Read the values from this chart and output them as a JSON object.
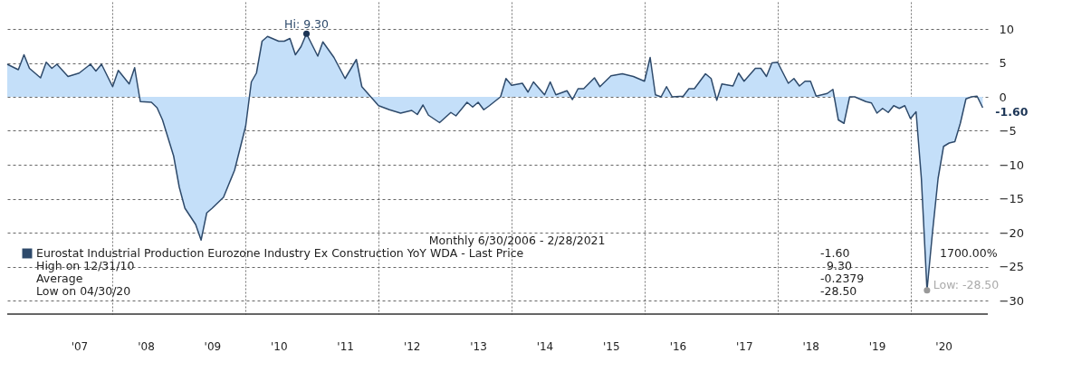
{
  "chart_data": {
    "type": "area",
    "x": [
      "2006-06",
      "2006-08",
      "2006-09",
      "2006-10",
      "2006-12",
      "2007-01",
      "2007-02",
      "2007-03",
      "2007-05",
      "2007-07",
      "2007-09",
      "2007-10",
      "2007-11",
      "2008-01",
      "2008-02",
      "2008-04",
      "2008-05",
      "2008-06",
      "2008-08",
      "2008-09",
      "2008-10",
      "2008-12",
      "2009-01",
      "2009-02",
      "2009-04",
      "2009-05",
      "2009-06",
      "2009-07",
      "2009-09",
      "2009-11",
      "2010-01",
      "2010-02",
      "2010-03",
      "2010-04",
      "2010-05",
      "2010-07",
      "2010-08",
      "2010-09",
      "2010-10",
      "2010-11",
      "2010-12",
      "2011-02",
      "2011-03",
      "2011-05",
      "2011-07",
      "2011-09",
      "2011-10",
      "2012-01",
      "2012-03",
      "2012-05",
      "2012-07",
      "2012-08",
      "2012-09",
      "2012-10",
      "2012-12",
      "2013-02",
      "2013-03",
      "2013-05",
      "2013-06",
      "2013-07",
      "2013-08",
      "2013-09",
      "2013-11",
      "2013-12",
      "2014-01",
      "2014-03",
      "2014-04",
      "2014-05",
      "2014-07",
      "2014-08",
      "2014-09",
      "2014-11",
      "2014-12",
      "2015-01",
      "2015-02",
      "2015-04",
      "2015-05",
      "2015-07",
      "2015-09",
      "2015-11",
      "2016-01",
      "2016-02",
      "2016-03",
      "2016-04",
      "2016-05",
      "2016-06",
      "2016-08",
      "2016-09",
      "2016-10",
      "2016-12",
      "2017-01",
      "2017-02",
      "2017-03",
      "2017-05",
      "2017-06",
      "2017-07",
      "2017-09",
      "2017-10",
      "2017-11",
      "2017-12",
      "2018-01",
      "2018-03",
      "2018-04",
      "2018-05",
      "2018-06",
      "2018-07",
      "2018-08",
      "2018-10",
      "2018-11",
      "2018-12",
      "2019-01",
      "2019-02",
      "2019-03",
      "2019-05",
      "2019-06",
      "2019-07",
      "2019-08",
      "2019-09",
      "2019-10",
      "2019-11",
      "2019-12",
      "2020-01",
      "2020-02",
      "2020-03",
      "2020-04",
      "2020-05",
      "2020-06",
      "2020-07",
      "2020-08",
      "2020-09",
      "2020-10",
      "2020-11",
      "2020-12",
      "2021-01",
      "2021-02"
    ],
    "series": [
      {
        "name": "Eurostat Industrial Production Eurozone Industry Ex Construction YoY WDA - Last Price",
        "color": "#2e4a6b",
        "values": [
          4.8,
          4.0,
          6.2,
          4.2,
          2.8,
          5.1,
          4.2,
          4.8,
          3.0,
          3.5,
          4.8,
          3.8,
          4.8,
          1.5,
          3.9,
          1.9,
          4.3,
          -0.7,
          -0.8,
          -1.6,
          -3.4,
          -8.7,
          -13.3,
          -16.4,
          -18.8,
          -21.1,
          -17.1,
          -16.4,
          -14.8,
          -10.8,
          -4.3,
          2.2,
          3.5,
          8.2,
          8.9,
          8.2,
          8.2,
          8.6,
          6.2,
          7.4,
          9.3,
          6.0,
          8.1,
          5.8,
          2.7,
          5.5,
          1.5,
          -1.3,
          -1.9,
          -2.4,
          -2.0,
          -2.6,
          -1.2,
          -2.7,
          -3.8,
          -2.3,
          -2.8,
          -0.8,
          -1.5,
          -0.8,
          -1.9,
          -1.3,
          0.0,
          2.7,
          1.7,
          2.0,
          0.7,
          2.2,
          0.3,
          2.2,
          0.3,
          0.9,
          -0.4,
          1.2,
          1.2,
          2.8,
          1.5,
          3.1,
          3.4,
          3.0,
          2.3,
          5.8,
          0.3,
          0.0,
          1.5,
          0.0,
          0.1,
          1.2,
          1.2,
          3.4,
          2.7,
          -0.5,
          1.9,
          1.6,
          3.5,
          2.3,
          4.2,
          4.2,
          3.0,
          5.0,
          5.1,
          2.0,
          2.7,
          1.6,
          2.3,
          2.3,
          0.1,
          0.5,
          1.1,
          -3.4,
          -3.9,
          0.0,
          0.0,
          -0.7,
          -0.9,
          -2.4,
          -1.7,
          -2.3,
          -1.3,
          -1.7,
          -1.3,
          -3.2,
          -2.2,
          -12.0,
          -28.5,
          -20.0,
          -12.0,
          -7.3,
          -6.8,
          -6.6,
          -3.9,
          -0.3,
          0.0,
          0.1,
          -1.6
        ]
      }
    ],
    "xlim": [
      "2006-06",
      "2021-03"
    ],
    "xticks": [
      {
        "value": "2007-07",
        "label": "'07"
      },
      {
        "value": "2008-07",
        "label": "'08"
      },
      {
        "value": "2009-07",
        "label": "'09"
      },
      {
        "value": "2010-07",
        "label": "'10"
      },
      {
        "value": "2011-07",
        "label": "'11"
      },
      {
        "value": "2012-07",
        "label": "'12"
      },
      {
        "value": "2013-07",
        "label": "'13"
      },
      {
        "value": "2014-07",
        "label": "'14"
      },
      {
        "value": "2015-07",
        "label": "'15"
      },
      {
        "value": "2016-07",
        "label": "'16"
      },
      {
        "value": "2017-07",
        "label": "'17"
      },
      {
        "value": "2018-07",
        "label": "'18"
      },
      {
        "value": "2019-07",
        "label": "'19"
      },
      {
        "value": "2020-07",
        "label": "'20"
      },
      {
        "value": "2008-01",
        "label": null
      },
      {
        "value": "2010-01",
        "label": null
      },
      {
        "value": "2012-01",
        "label": null
      },
      {
        "value": "2014-01",
        "label": null
      },
      {
        "value": "2016-01",
        "label": null
      },
      {
        "value": "2018-01",
        "label": null
      },
      {
        "value": "2020-01",
        "label": null
      }
    ],
    "ylim": [
      -32,
      14
    ],
    "yticks": [
      10,
      5,
      0,
      -5,
      -10,
      -15,
      -20,
      -25,
      -30
    ],
    "grid": true,
    "legend": "bottom",
    "annotations": [
      "Monthly 6/30/2006 - 2/28/2021",
      "-1.60",
      "1700.00%",
      "High on 12/31/10",
      "9.30",
      "Average",
      "-0.2379",
      "Low on 04/30/20",
      "-28.50",
      {
        "text": "Hi: 9.30",
        "x": "2010-12",
        "y": 9.3
      },
      {
        "text": "Low: -28.50",
        "x": "2020-04",
        "y": -28.5
      },
      {
        "text": "-1.60",
        "x": "2021-02",
        "y": -1.6
      }
    ]
  }
}
